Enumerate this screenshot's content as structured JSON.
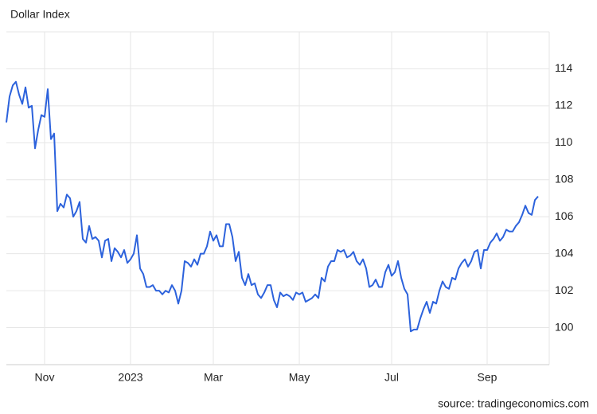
{
  "chart_data": {
    "type": "line",
    "title": "Dollar Index",
    "source": "source: tradingeconomics.com",
    "categories": [
      null,
      null,
      null,
      null,
      null,
      null,
      null,
      null,
      null,
      null,
      null,
      null,
      "Nov",
      null,
      null,
      null,
      null,
      null,
      null,
      null,
      null,
      null,
      null,
      null,
      null,
      null,
      null,
      null,
      null,
      null,
      null,
      null,
      null,
      null,
      null,
      null,
      null,
      null,
      null,
      "2023",
      null,
      null,
      null,
      null,
      null,
      null,
      null,
      null,
      null,
      null,
      null,
      null,
      null,
      null,
      null,
      null,
      null,
      null,
      null,
      null,
      null,
      null,
      null,
      null,
      null,
      "Mar",
      null,
      null,
      null,
      null,
      null,
      null,
      null,
      null,
      null,
      null,
      null,
      null,
      null,
      null,
      null,
      null,
      null,
      null,
      null,
      null,
      null,
      null,
      null,
      null,
      null,
      null,
      "May",
      null,
      null,
      null,
      null,
      null,
      null,
      null,
      null,
      null,
      null,
      null,
      null,
      null,
      null,
      null,
      null,
      null,
      null,
      null,
      null,
      null,
      null,
      null,
      null,
      null,
      null,
      null,
      null,
      "Jul",
      null,
      null,
      null,
      null,
      null,
      null,
      null,
      null,
      null,
      null,
      null,
      null,
      null,
      null,
      null,
      null,
      null,
      null,
      null,
      null,
      null,
      null,
      null,
      null,
      null,
      null,
      null,
      null,
      null,
      "Sep",
      null,
      null,
      null,
      null,
      null,
      null,
      null,
      null,
      null,
      null,
      null,
      null,
      null,
      null,
      null,
      null
    ],
    "values": [
      111.1,
      112.5,
      113.1,
      113.3,
      112.6,
      112.1,
      113.0,
      111.9,
      112.0,
      109.7,
      110.7,
      111.5,
      111.4,
      112.9,
      110.2,
      110.5,
      106.3,
      106.7,
      106.5,
      107.2,
      107.0,
      106.0,
      106.3,
      106.8,
      104.8,
      104.6,
      105.5,
      104.8,
      104.9,
      104.7,
      103.8,
      104.7,
      104.8,
      103.6,
      104.3,
      104.1,
      103.8,
      104.2,
      103.5,
      103.7,
      104.0,
      105.0,
      103.2,
      102.9,
      102.2,
      102.2,
      102.3,
      102.0,
      102.0,
      101.8,
      102.0,
      101.9,
      102.3,
      102.0,
      101.3,
      102.0,
      103.6,
      103.5,
      103.3,
      103.7,
      103.4,
      104.0,
      104.0,
      104.4,
      105.2,
      104.7,
      105.0,
      104.4,
      104.4,
      105.6,
      105.6,
      104.9,
      103.6,
      104.1,
      102.7,
      102.3,
      102.9,
      102.3,
      102.4,
      101.8,
      101.6,
      101.9,
      102.3,
      102.3,
      101.5,
      101.1,
      101.9,
      101.7,
      101.8,
      101.7,
      101.5,
      101.9,
      101.8,
      101.9,
      101.4,
      101.5,
      101.6,
      101.8,
      101.6,
      102.7,
      102.5,
      103.3,
      103.6,
      103.6,
      104.2,
      104.1,
      104.2,
      103.8,
      103.9,
      104.1,
      103.6,
      103.4,
      103.7,
      103.2,
      102.2,
      102.3,
      102.6,
      102.2,
      102.2,
      103.0,
      103.4,
      102.8,
      103.0,
      103.6,
      102.7,
      102.1,
      101.8,
      99.8,
      99.9,
      99.9,
      100.5,
      101.0,
      101.4,
      100.8,
      101.4,
      101.3,
      102.0,
      102.5,
      102.2,
      102.1,
      102.7,
      102.6,
      103.2,
      103.5,
      103.7,
      103.3,
      103.6,
      104.1,
      104.2,
      103.2,
      104.2,
      104.2,
      104.6,
      104.8,
      105.1,
      104.7,
      104.9,
      105.3,
      105.2,
      105.2,
      105.5,
      105.7,
      106.1,
      106.6,
      106.2,
      106.1,
      106.9,
      107.1
    ],
    "color": "#2c62dc",
    "ylim": [
      98,
      116
    ],
    "yticks": [
      100,
      102,
      104,
      106,
      108,
      110,
      112,
      114
    ],
    "grid": true
  }
}
